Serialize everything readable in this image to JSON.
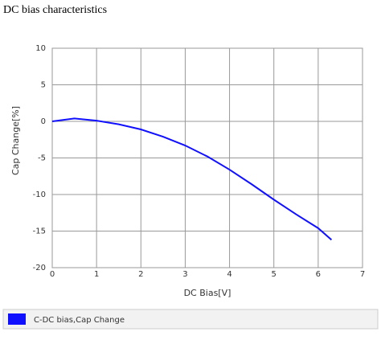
{
  "chart_data": {
    "type": "line",
    "title": "DC bias characteristics",
    "x_label": "DC Bias[V]",
    "y_label": "Cap Change[%]",
    "x": [
      0,
      0.5,
      1,
      1.5,
      2,
      2.5,
      3,
      3.5,
      4,
      4.5,
      5,
      5.5,
      6,
      6.3
    ],
    "series": [
      {
        "name": "C-DC bias,Cap Change",
        "color": "#1010ff",
        "values": [
          0,
          0.4,
          0.1,
          -0.4,
          -1.1,
          -2.1,
          -3.3,
          -4.8,
          -6.6,
          -8.6,
          -10.7,
          -12.7,
          -14.6,
          -16.2
        ]
      }
    ],
    "xlim": [
      0,
      7
    ],
    "xticks": [
      0,
      1,
      2,
      3,
      4,
      5,
      6,
      7
    ],
    "ylim": [
      -20,
      10
    ],
    "yticks": [
      -20,
      -15,
      -10,
      -5,
      0,
      5,
      10
    ],
    "grid": true
  }
}
